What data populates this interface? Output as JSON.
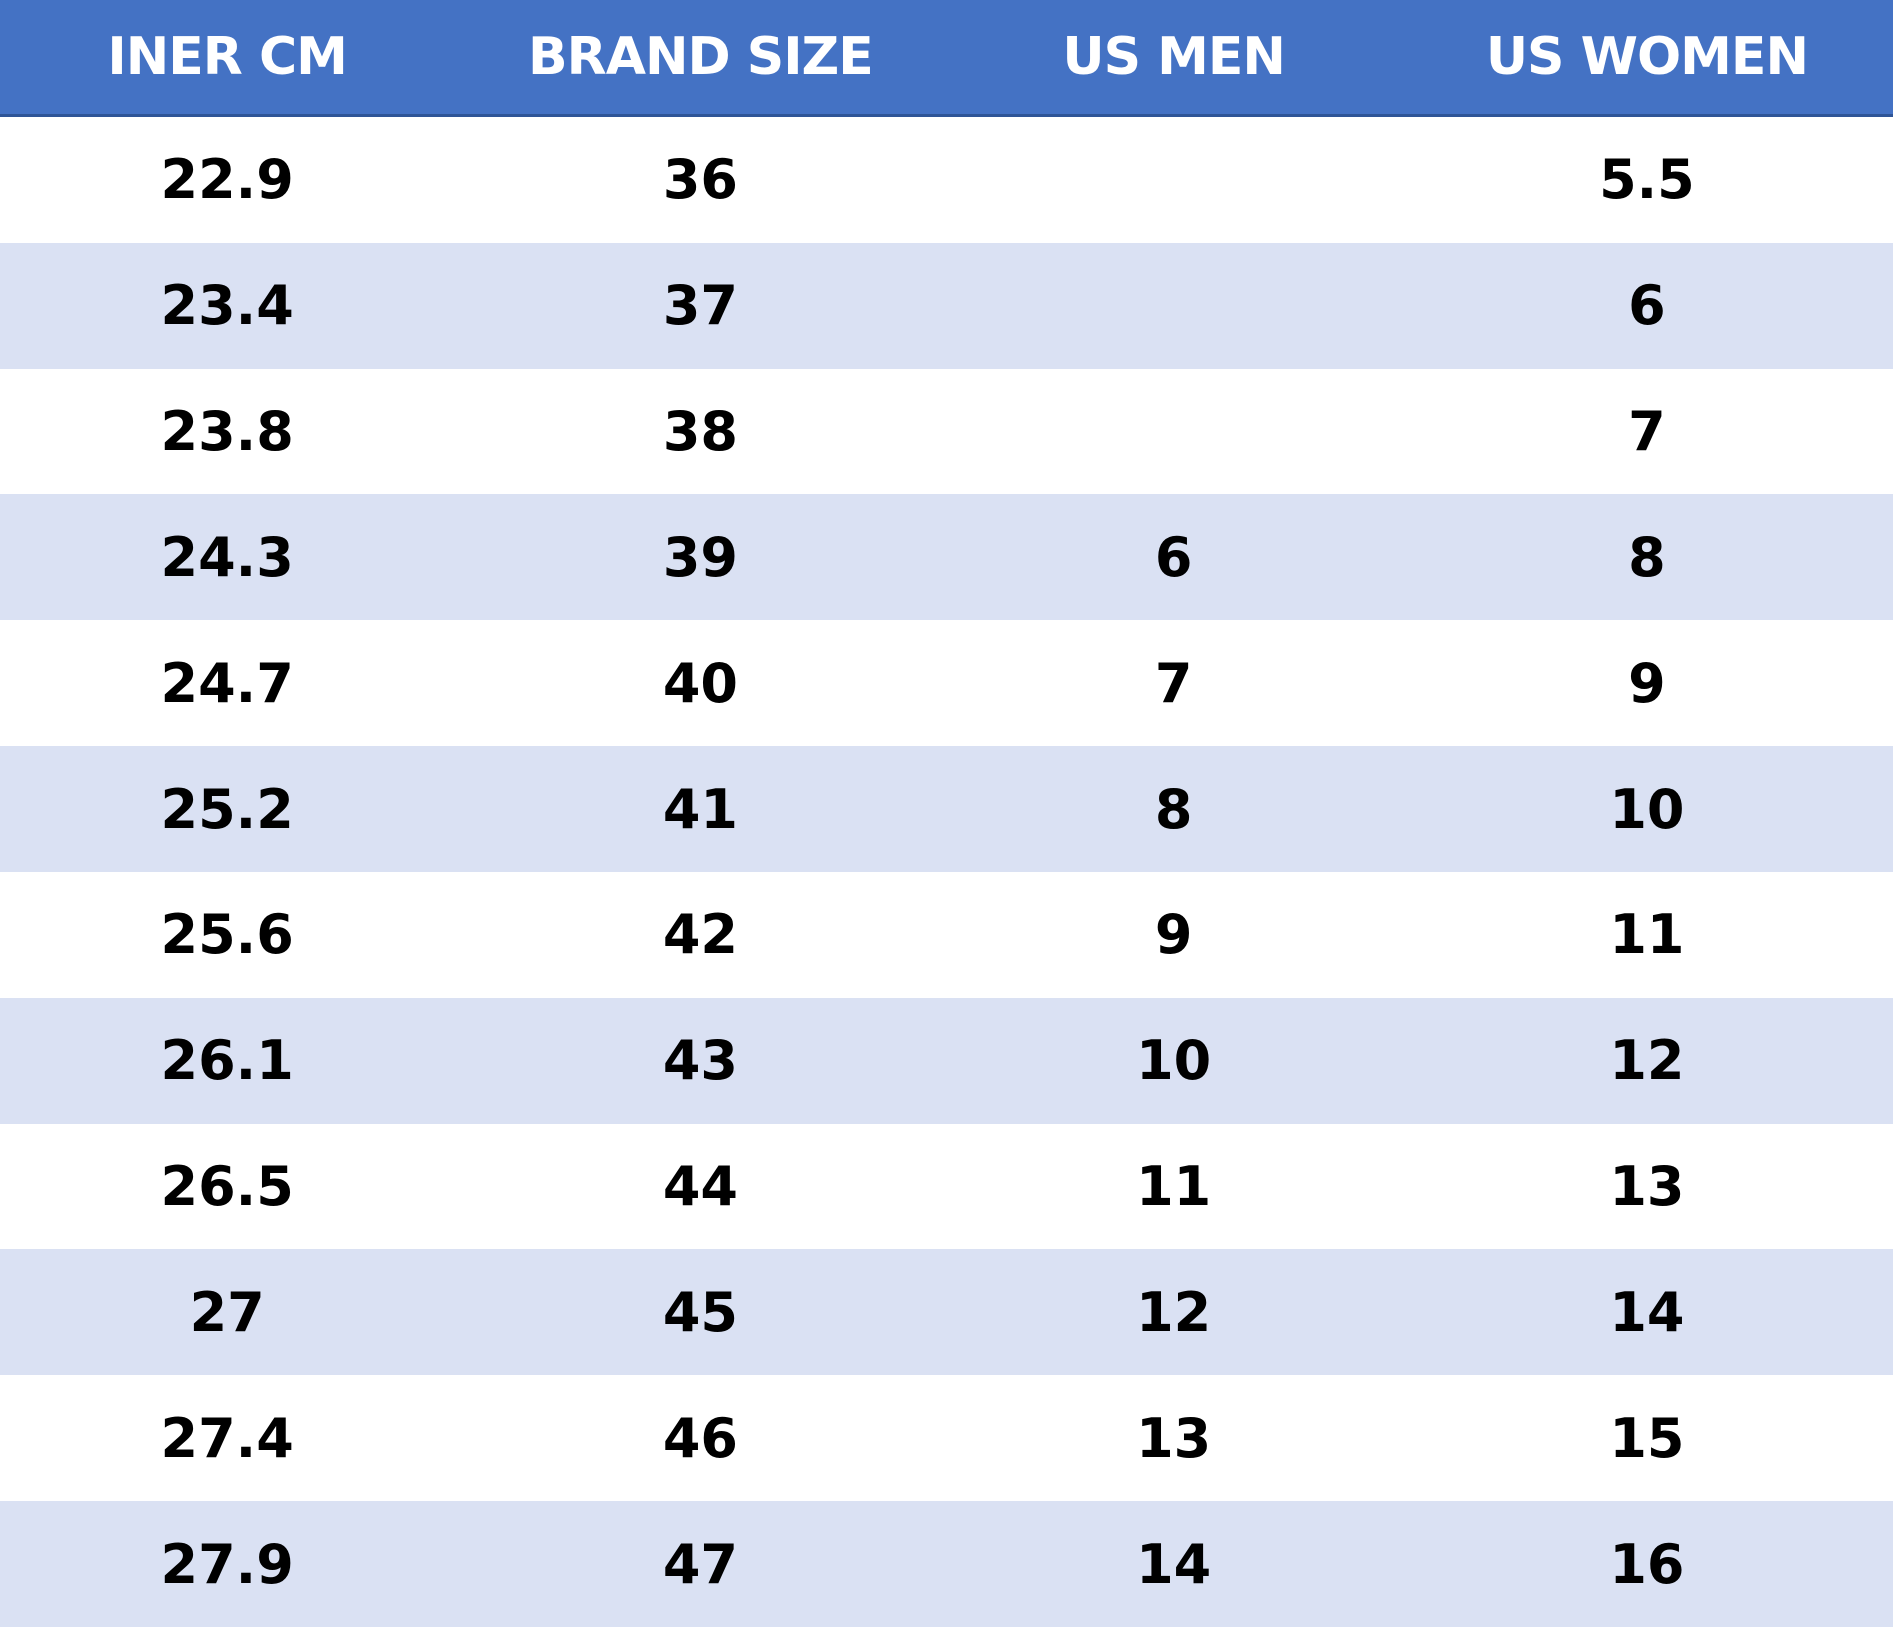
{
  "table": {
    "headers": [
      "INER CM",
      "BRAND SIZE",
      "US MEN",
      "US WOMEN"
    ],
    "rows": [
      [
        "22.9",
        "36",
        "",
        "5.5"
      ],
      [
        "23.4",
        "37",
        "",
        "6"
      ],
      [
        "23.8",
        "38",
        "",
        "7"
      ],
      [
        "24.3",
        "39",
        "6",
        "8"
      ],
      [
        "24.7",
        "40",
        "7",
        "9"
      ],
      [
        "25.2",
        "41",
        "8",
        "10"
      ],
      [
        "25.6",
        "42",
        "9",
        "11"
      ],
      [
        "26.1",
        "43",
        "10",
        "12"
      ],
      [
        "26.5",
        "44",
        "11",
        "13"
      ],
      [
        "27",
        "45",
        "12",
        "14"
      ],
      [
        "27.4",
        "46",
        "13",
        "15"
      ],
      [
        "27.9",
        "47",
        "14",
        "16"
      ]
    ]
  },
  "colors": {
    "header_background": "#4472c4",
    "header_text": "#ffffff",
    "row_band": "#dae1f3",
    "row_plain": "#ffffff",
    "cell_text": "#000000"
  }
}
